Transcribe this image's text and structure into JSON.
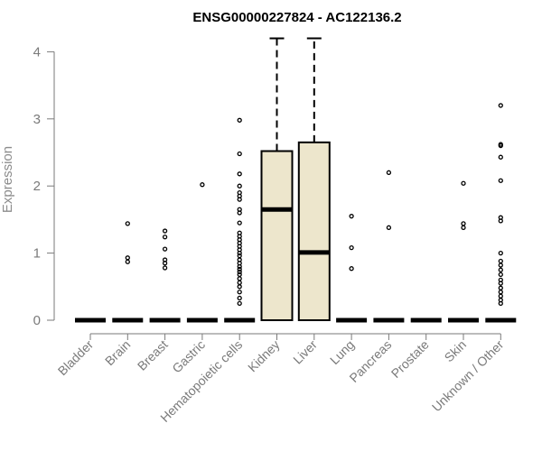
{
  "chart_data": {
    "type": "box",
    "title": "ENSG00000227824 - AC122136.2",
    "xlabel": "",
    "ylabel": "Expression",
    "ylim": [
      0,
      4
    ],
    "yticks": [
      "0",
      "1",
      "2",
      "3",
      "4"
    ],
    "grid": false,
    "box_fill": "#ede6cc",
    "categories": [
      "Bladder",
      "Brain",
      "Breast",
      "Gastric",
      "Hematopoietic cells",
      "Kidney",
      "Liver",
      "Lung",
      "Pancreas",
      "Prostate",
      "Skin",
      "Unknown / Other"
    ],
    "boxes": [
      {
        "median": 0,
        "q1": 0,
        "q3": 0,
        "whisker_low": 0,
        "whisker_high": 0,
        "outliers": []
      },
      {
        "median": 0,
        "q1": 0,
        "q3": 0,
        "whisker_low": 0,
        "whisker_high": 0,
        "outliers": [
          0.87,
          0.93,
          1.44
        ]
      },
      {
        "median": 0,
        "q1": 0,
        "q3": 0,
        "whisker_low": 0,
        "whisker_high": 0,
        "outliers": [
          0.78,
          0.85,
          0.9,
          1.06,
          1.24,
          1.33
        ]
      },
      {
        "median": 0,
        "q1": 0,
        "q3": 0,
        "whisker_low": 0,
        "whisker_high": 0,
        "outliers": [
          2.02
        ]
      },
      {
        "median": 0,
        "q1": 0,
        "q3": 0,
        "whisker_low": 0,
        "whisker_high": 0,
        "outliers": [
          0.25,
          0.33,
          0.42,
          0.5,
          0.56,
          0.62,
          0.68,
          0.72,
          0.76,
          0.8,
          0.85,
          0.9,
          0.96,
          1.0,
          1.05,
          1.1,
          1.15,
          1.2,
          1.25,
          1.3,
          1.45,
          1.6,
          1.65,
          1.8,
          1.85,
          1.9,
          2.0,
          2.18,
          2.48,
          2.98
        ]
      },
      {
        "median": 1.65,
        "q1": 0,
        "q3": 2.52,
        "whisker_low": 0,
        "whisker_high": 4.2,
        "outliers": []
      },
      {
        "median": 1.01,
        "q1": 0,
        "q3": 2.65,
        "whisker_low": 0,
        "whisker_high": 4.2,
        "outliers": []
      },
      {
        "median": 0,
        "q1": 0,
        "q3": 0,
        "whisker_low": 0,
        "whisker_high": 0,
        "outliers": [
          0.77,
          1.08,
          1.55
        ]
      },
      {
        "median": 0,
        "q1": 0,
        "q3": 0,
        "whisker_low": 0,
        "whisker_high": 0,
        "outliers": [
          1.38,
          2.2
        ]
      },
      {
        "median": 0,
        "q1": 0,
        "q3": 0,
        "whisker_low": 0,
        "whisker_high": 0,
        "outliers": []
      },
      {
        "median": 0,
        "q1": 0,
        "q3": 0,
        "whisker_low": 0,
        "whisker_high": 0,
        "outliers": [
          1.38,
          1.44,
          2.04
        ]
      },
      {
        "median": 0,
        "q1": 0,
        "q3": 0,
        "whisker_low": 0,
        "whisker_high": 0,
        "outliers": [
          0.25,
          0.3,
          0.36,
          0.42,
          0.48,
          0.55,
          0.6,
          0.68,
          0.75,
          0.82,
          0.88,
          1.0,
          1.48,
          1.53,
          2.08,
          2.43,
          2.6,
          2.62,
          3.2
        ]
      }
    ]
  }
}
